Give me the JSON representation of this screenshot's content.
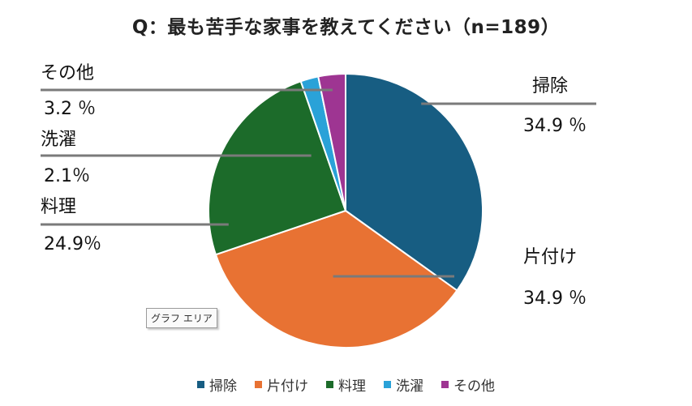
{
  "chart_data": {
    "type": "pie",
    "title": "Q：最も苦手な家事を教えてください（n=189）",
    "categories": [
      "掃除",
      "片付け",
      "料理",
      "洗濯",
      "その他"
    ],
    "values": [
      34.9,
      34.9,
      24.9,
      2.1,
      3.2
    ],
    "value_labels": [
      "34.9 ％",
      "34.9 ％",
      "24.9％",
      "2.1％",
      "3.2 ％"
    ],
    "colors": [
      "#175d82",
      "#e87233",
      "#1c6b2a",
      "#2aa2d8",
      "#9e3592"
    ],
    "legend_position": "bottom"
  },
  "tooltip": "グラフ エリア"
}
